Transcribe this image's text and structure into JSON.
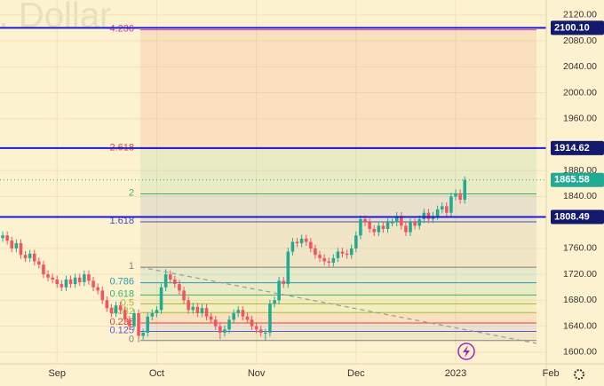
{
  "chart_data": {
    "type": "candlestick",
    "watermark": "S. Dollar",
    "ohlc": [
      [
        1776,
        1786,
        1770,
        1780
      ],
      [
        1780,
        1786,
        1766,
        1772
      ],
      [
        1772,
        1778,
        1754,
        1760
      ],
      [
        1760,
        1774,
        1754,
        1768
      ],
      [
        1768,
        1774,
        1744,
        1750
      ],
      [
        1750,
        1756,
        1739,
        1745
      ],
      [
        1745,
        1758,
        1739,
        1752
      ],
      [
        1752,
        1758,
        1734,
        1740
      ],
      [
        1740,
        1746,
        1729,
        1735
      ],
      [
        1735,
        1741,
        1714,
        1720
      ],
      [
        1720,
        1726,
        1709,
        1715
      ],
      [
        1715,
        1721,
        1706,
        1712
      ],
      [
        1712,
        1718,
        1699,
        1705
      ],
      [
        1705,
        1711,
        1694,
        1700
      ],
      [
        1700,
        1718,
        1694,
        1712
      ],
      [
        1712,
        1718,
        1699,
        1705
      ],
      [
        1705,
        1721,
        1699,
        1715
      ],
      [
        1715,
        1721,
        1702,
        1708
      ],
      [
        1708,
        1726,
        1702,
        1720
      ],
      [
        1720,
        1726,
        1704,
        1710
      ],
      [
        1710,
        1716,
        1694,
        1700
      ],
      [
        1700,
        1706,
        1689,
        1695
      ],
      [
        1695,
        1701,
        1674,
        1680
      ],
      [
        1680,
        1686,
        1662,
        1668
      ],
      [
        1668,
        1674,
        1654,
        1660
      ],
      [
        1660,
        1678,
        1654,
        1672
      ],
      [
        1672,
        1678,
        1659,
        1665
      ],
      [
        1665,
        1671,
        1644,
        1650
      ],
      [
        1650,
        1656,
        1634,
        1640
      ],
      [
        1640,
        1666,
        1634,
        1660
      ],
      [
        1660,
        1666,
        1615,
        1625
      ],
      [
        1625,
        1636,
        1619,
        1630
      ],
      [
        1630,
        1661,
        1624,
        1655
      ],
      [
        1655,
        1666,
        1649,
        1660
      ],
      [
        1660,
        1671,
        1654,
        1665
      ],
      [
        1665,
        1706,
        1659,
        1700
      ],
      [
        1700,
        1728,
        1694,
        1720
      ],
      [
        1720,
        1726,
        1706,
        1712
      ],
      [
        1712,
        1718,
        1699,
        1705
      ],
      [
        1705,
        1711,
        1689,
        1695
      ],
      [
        1695,
        1701,
        1674,
        1680
      ],
      [
        1680,
        1686,
        1659,
        1665
      ],
      [
        1665,
        1676,
        1659,
        1670
      ],
      [
        1670,
        1676,
        1654,
        1660
      ],
      [
        1660,
        1674,
        1654,
        1668
      ],
      [
        1668,
        1674,
        1649,
        1655
      ],
      [
        1655,
        1661,
        1644,
        1650
      ],
      [
        1650,
        1656,
        1634,
        1640
      ],
      [
        1640,
        1646,
        1620,
        1630
      ],
      [
        1630,
        1641,
        1624,
        1635
      ],
      [
        1635,
        1656,
        1629,
        1650
      ],
      [
        1650,
        1666,
        1644,
        1660
      ],
      [
        1660,
        1671,
        1654,
        1665
      ],
      [
        1665,
        1671,
        1649,
        1655
      ],
      [
        1655,
        1661,
        1644,
        1650
      ],
      [
        1650,
        1656,
        1634,
        1640
      ],
      [
        1640,
        1646,
        1629,
        1635
      ],
      [
        1635,
        1641,
        1624,
        1630
      ],
      [
        1630,
        1636,
        1618,
        1630
      ],
      [
        1630,
        1681,
        1624,
        1675
      ],
      [
        1675,
        1686,
        1669,
        1680
      ],
      [
        1680,
        1716,
        1674,
        1710
      ],
      [
        1710,
        1716,
        1699,
        1705
      ],
      [
        1705,
        1761,
        1699,
        1755
      ],
      [
        1755,
        1776,
        1749,
        1770
      ],
      [
        1770,
        1776,
        1762,
        1768
      ],
      [
        1768,
        1781,
        1762,
        1775
      ],
      [
        1775,
        1781,
        1764,
        1770
      ],
      [
        1770,
        1776,
        1754,
        1760
      ],
      [
        1760,
        1766,
        1744,
        1750
      ],
      [
        1750,
        1756,
        1739,
        1745
      ],
      [
        1745,
        1751,
        1734,
        1740
      ],
      [
        1740,
        1746,
        1730,
        1738
      ],
      [
        1738,
        1751,
        1732,
        1745
      ],
      [
        1745,
        1761,
        1739,
        1755
      ],
      [
        1755,
        1761,
        1746,
        1752
      ],
      [
        1752,
        1758,
        1744,
        1750
      ],
      [
        1750,
        1766,
        1744,
        1760
      ],
      [
        1760,
        1786,
        1754,
        1780
      ],
      [
        1780,
        1811,
        1774,
        1805
      ],
      [
        1805,
        1811,
        1794,
        1800
      ],
      [
        1800,
        1806,
        1784,
        1790
      ],
      [
        1790,
        1796,
        1779,
        1785
      ],
      [
        1785,
        1801,
        1779,
        1795
      ],
      [
        1795,
        1801,
        1784,
        1790
      ],
      [
        1790,
        1806,
        1784,
        1800
      ],
      [
        1800,
        1806,
        1794,
        1800
      ],
      [
        1800,
        1816,
        1794,
        1810
      ],
      [
        1810,
        1816,
        1789,
        1795
      ],
      [
        1795,
        1801,
        1779,
        1785
      ],
      [
        1785,
        1806,
        1779,
        1800
      ],
      [
        1800,
        1806,
        1789,
        1795
      ],
      [
        1795,
        1811,
        1789,
        1805
      ],
      [
        1805,
        1821,
        1799,
        1815
      ],
      [
        1815,
        1821,
        1799,
        1805
      ],
      [
        1805,
        1816,
        1799,
        1810
      ],
      [
        1810,
        1826,
        1804,
        1820
      ],
      [
        1820,
        1831,
        1814,
        1825
      ],
      [
        1825,
        1831,
        1809,
        1815
      ],
      [
        1815,
        1846,
        1809,
        1840
      ],
      [
        1840,
        1851,
        1834,
        1845
      ],
      [
        1845,
        1851,
        1829,
        1835
      ],
      [
        1835,
        1871,
        1829,
        1865.58
      ]
    ],
    "up_color": "#22ab94",
    "down_color": "#f7525f",
    "xlim": [
      -0.6,
      120
    ],
    "xticks": [
      {
        "value": 12,
        "label": "Sep"
      },
      {
        "value": 34,
        "label": "Oct"
      },
      {
        "value": 56,
        "label": "Nov"
      },
      {
        "value": 78,
        "label": "Dec"
      },
      {
        "value": 100,
        "label": "2023"
      },
      {
        "value": 121,
        "label": "Feb"
      }
    ],
    "ylim": [
      1582,
      2143
    ],
    "yticks": [
      {
        "value": 1600,
        "label": "1600.00"
      },
      {
        "value": 1640,
        "label": "1640.00"
      },
      {
        "value": 1680,
        "label": "1680.00"
      },
      {
        "value": 1720,
        "label": "1720.00"
      },
      {
        "value": 1760,
        "label": "1760.00"
      },
      {
        "value": 1840,
        "label": "1840.00"
      },
      {
        "value": 1880,
        "label": "1880.00"
      },
      {
        "value": 1960,
        "label": "1960.00"
      },
      {
        "value": 2000,
        "label": "2000.00"
      },
      {
        "value": 2040,
        "label": "2040.00"
      },
      {
        "value": 2080,
        "label": "2080.00"
      },
      {
        "value": 2120,
        "label": "2120.00"
      }
    ],
    "grid": true,
    "hlines": [
      {
        "value": 2100.1,
        "label": "2100.10",
        "color": "#1a1ad8"
      },
      {
        "value": 1914.62,
        "label": "1914.62",
        "color": "#1a1ad8"
      },
      {
        "value": 1808.49,
        "label": "1808.49",
        "color": "#1a1ad8"
      }
    ],
    "last_price": 1865.58,
    "last_price_color": "#22ab94",
    "fib": {
      "levels": [
        {
          "level": 0,
          "price": 1618,
          "color": "#808080"
        },
        {
          "level": 0.125,
          "price": 1632,
          "color": "#5b5bd6"
        },
        {
          "level": 0.236,
          "price": 1645,
          "color": "#e0443e"
        },
        {
          "level": 0.382,
          "price": 1661,
          "color": "#9bc53d"
        },
        {
          "level": 0.5,
          "price": 1674.5,
          "color": "#a3b83a"
        },
        {
          "level": 0.618,
          "price": 1688,
          "color": "#3db36b"
        },
        {
          "level": 0.786,
          "price": 1707,
          "color": "#2a9db5"
        },
        {
          "level": 1,
          "price": 1731,
          "color": "#808080"
        },
        {
          "level": 1.618,
          "price": 1801,
          "color": "#3f51b5"
        },
        {
          "level": 2,
          "price": 1844,
          "color": "#3db36b"
        },
        {
          "level": 2.618,
          "price": 1914,
          "color": "#e0443e"
        },
        {
          "level": 4.236,
          "price": 2097,
          "color": "#d6409f"
        }
      ]
    }
  }
}
